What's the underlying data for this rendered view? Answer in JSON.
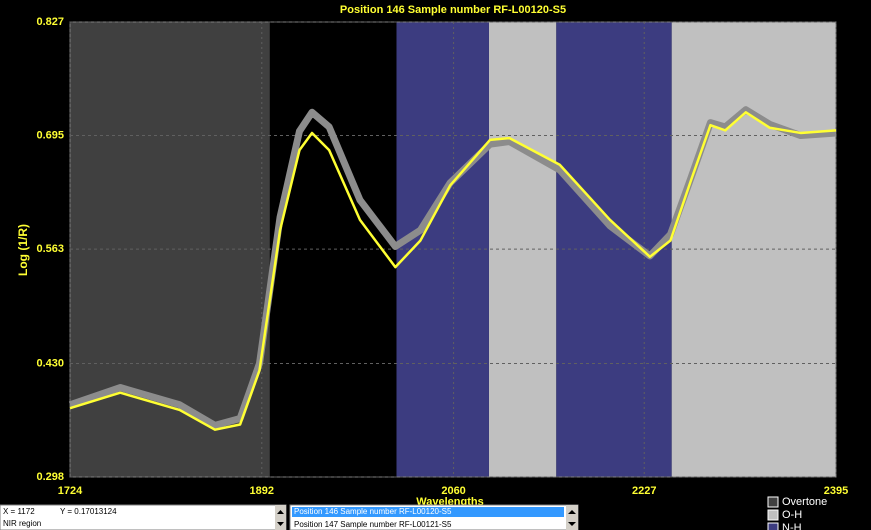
{
  "chart_data": {
    "type": "line",
    "title": "Position 146  Sample number RF-L00120-S5",
    "y_label": "Log (1/R)",
    "x_label": "Wavelengths",
    "xlim": [
      1724,
      2395
    ],
    "xticks": [
      1724,
      1892,
      2060,
      2227,
      2395
    ],
    "ylim": [
      0.298,
      0.827
    ],
    "yticks": [
      0.298,
      {
        "value": 0.43,
        "label": "0.430"
      },
      0.563,
      0.695,
      0.827
    ],
    "grid": true,
    "regions": [
      {
        "name": "Overtone",
        "color": "#404040",
        "spans": [
          [
            1724,
            1899
          ]
        ]
      },
      {
        "name": "O-H",
        "color": "#c0c0c0",
        "spans": [
          [
            2091,
            2150
          ],
          [
            2251,
            2395
          ]
        ]
      },
      {
        "name": "N-H",
        "color": "#3c3c80",
        "spans": [
          [
            2010,
            2091
          ],
          [
            2150,
            2251
          ]
        ]
      }
    ],
    "x": [
      1724,
      1768,
      1820,
      1851,
      1873,
      1890,
      1908,
      1925,
      1936,
      1951,
      1978,
      2009,
      2031,
      2057,
      2092,
      2109,
      2153,
      2197,
      2232,
      2250,
      2268,
      2285,
      2298,
      2316,
      2337,
      2364,
      2395
    ],
    "series": [
      {
        "color": "#8c8c8c",
        "values": [
          0.382,
          0.402,
          0.382,
          0.358,
          0.366,
          0.43,
          0.6,
          0.7,
          0.722,
          0.705,
          0.62,
          0.566,
          0.585,
          0.64,
          0.685,
          0.688,
          0.655,
          0.59,
          0.555,
          0.58,
          0.646,
          0.71,
          0.705,
          0.725,
          0.708,
          0.695,
          0.698
        ]
      },
      {
        "color": "#ffff33",
        "values": [
          0.378,
          0.396,
          0.376,
          0.353,
          0.359,
          0.422,
          0.585,
          0.678,
          0.698,
          0.678,
          0.597,
          0.542,
          0.573,
          0.637,
          0.69,
          0.692,
          0.661,
          0.597,
          0.554,
          0.573,
          0.643,
          0.707,
          0.701,
          0.722,
          0.704,
          0.698,
          0.701
        ]
      }
    ]
  },
  "ui": {
    "status_x": "X = 1172",
    "status_y": "Y = 0.17013124",
    "status_mode": "NIR region",
    "list": [
      "Position 146  Sample number RF-L00120-S5",
      "Position 147  Sample number RF-L00121-S5"
    ]
  }
}
